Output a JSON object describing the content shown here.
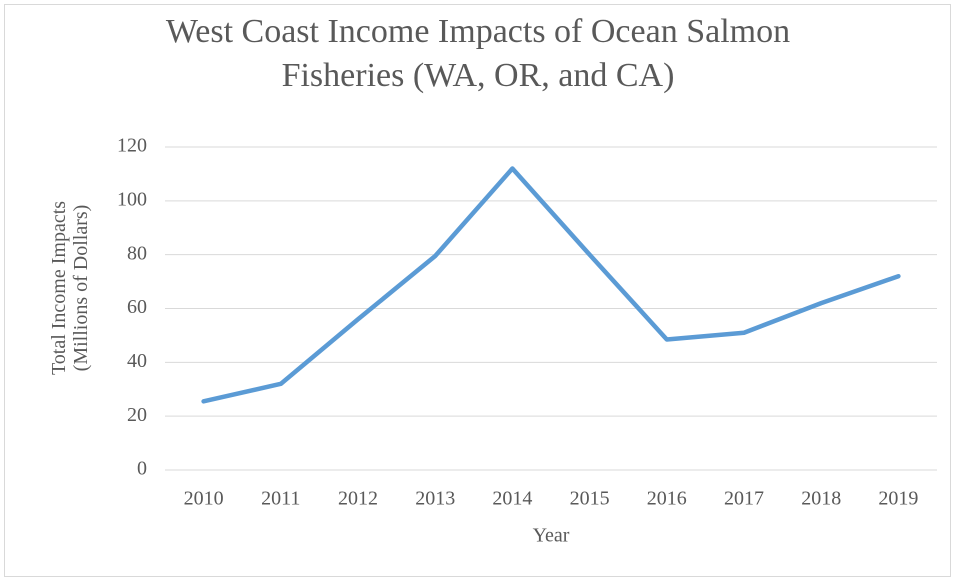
{
  "chart_data": {
    "type": "line",
    "title": "West Coast Income Impacts of Ocean Salmon Fisheries (WA, OR, and CA)",
    "xlabel": "Year",
    "ylabel": "Total Income Impacts (Millions of Dollars)",
    "categories": [
      "2010",
      "2011",
      "2012",
      "2013",
      "2014",
      "2015",
      "2016",
      "2017",
      "2018",
      "2019"
    ],
    "series": [
      {
        "name": "Total Income Impacts",
        "color": "#5b9bd5",
        "values": [
          25.5,
          32,
          56,
          79.5,
          112,
          80,
          48.5,
          51,
          62,
          72
        ]
      }
    ],
    "ylim": [
      0,
      120
    ],
    "yticks": [
      0,
      20,
      40,
      60,
      80,
      100,
      120
    ],
    "grid": true
  }
}
